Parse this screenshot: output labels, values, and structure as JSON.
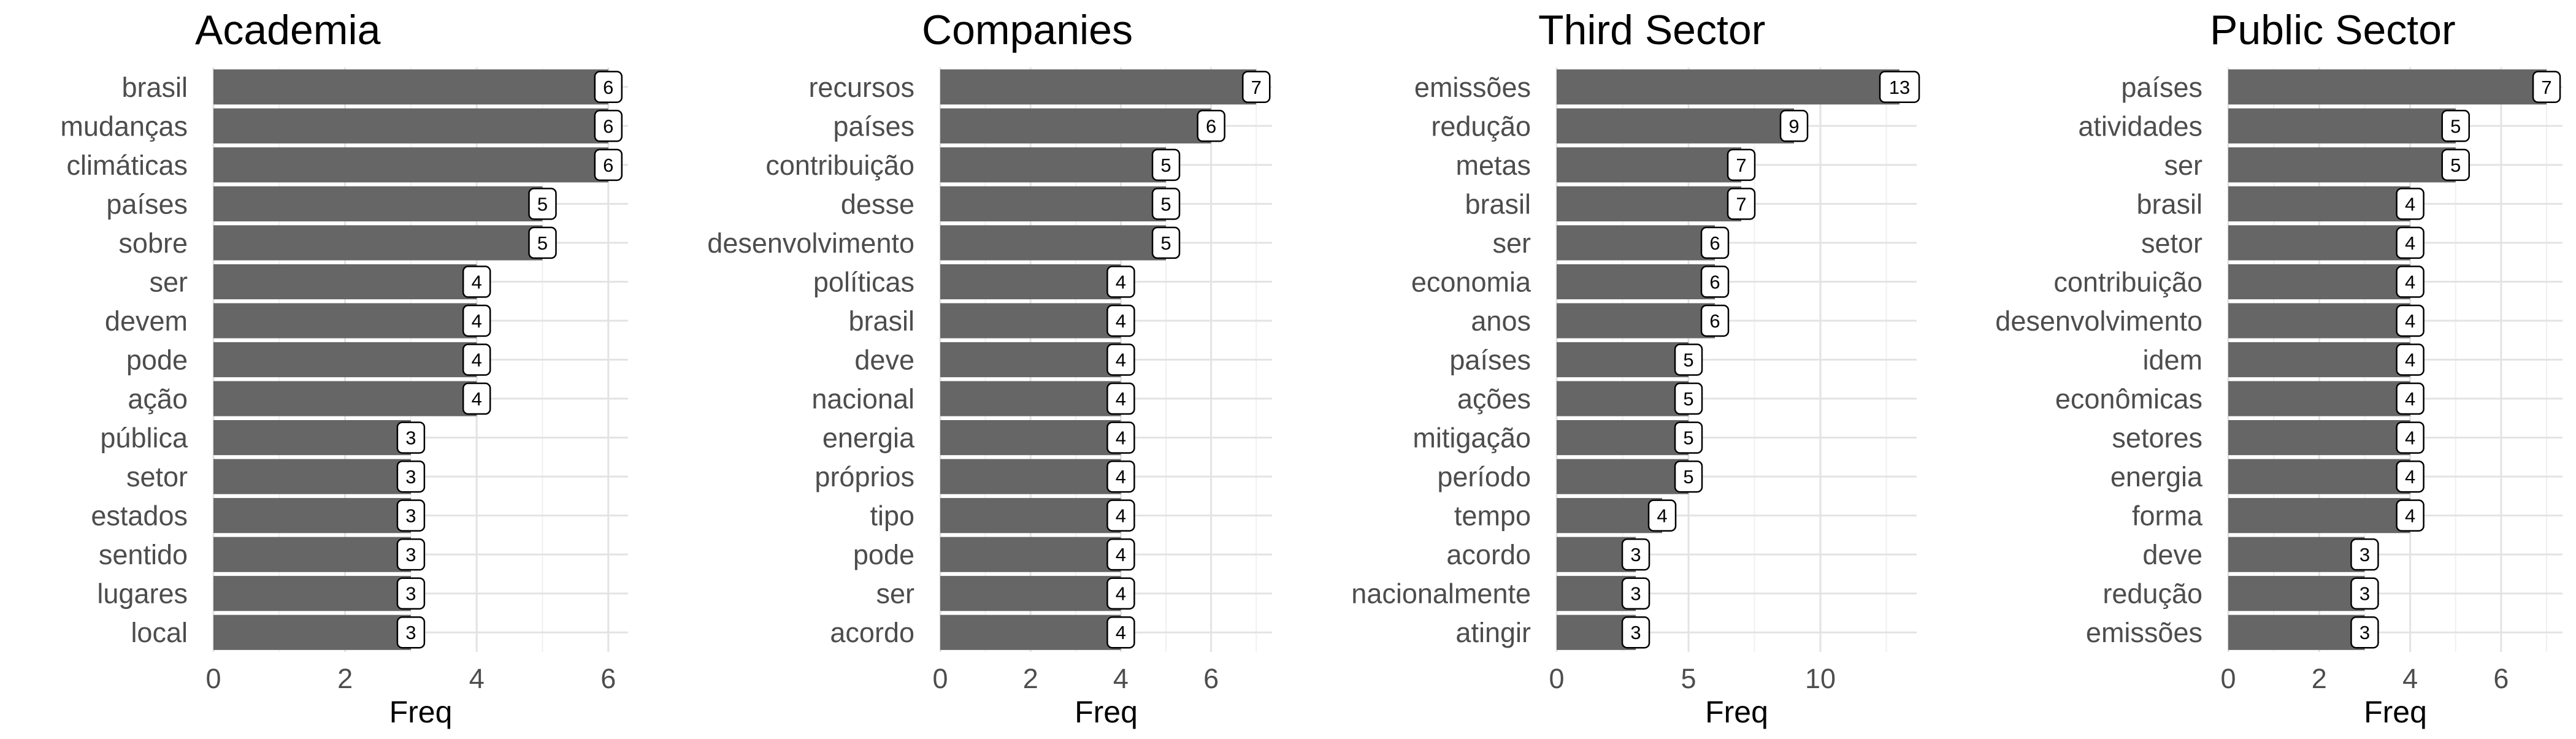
{
  "chart_data": [
    {
      "type": "bar",
      "orientation": "horizontal",
      "title": "Academia",
      "xlabel": "Freq",
      "xlim": [
        0,
        6.3
      ],
      "xticks": [
        0,
        2,
        4,
        6
      ],
      "bar_color": "#666666",
      "categories": [
        "brasil",
        "mudanças",
        "climáticas",
        "países",
        "sobre",
        "ser",
        "devem",
        "pode",
        "ação",
        "pública",
        "setor",
        "estados",
        "sentido",
        "lugares",
        "local"
      ],
      "values": [
        6,
        6,
        6,
        5,
        5,
        4,
        4,
        4,
        4,
        3,
        3,
        3,
        3,
        3,
        3
      ]
    },
    {
      "type": "bar",
      "orientation": "horizontal",
      "title": "Companies",
      "xlabel": "Freq",
      "xlim": [
        0,
        7.35
      ],
      "xticks": [
        0,
        2,
        4,
        6
      ],
      "bar_color": "#666666",
      "categories": [
        "recursos",
        "países",
        "contribuição",
        "desse",
        "desenvolvimento",
        "políticas",
        "brasil",
        "deve",
        "nacional",
        "energia",
        "próprios",
        "tipo",
        "pode",
        "ser",
        "acordo"
      ],
      "values": [
        7,
        6,
        5,
        5,
        5,
        4,
        4,
        4,
        4,
        4,
        4,
        4,
        4,
        4,
        4
      ]
    },
    {
      "type": "bar",
      "orientation": "horizontal",
      "title": "Third Sector",
      "xlabel": "Freq",
      "xlim": [
        0,
        13.65
      ],
      "xticks": [
        0,
        5,
        10
      ],
      "bar_color": "#666666",
      "categories": [
        "emissões",
        "redução",
        "metas",
        "brasil",
        "ser",
        "economia",
        "anos",
        "países",
        "ações",
        "mitigação",
        "período",
        "tempo",
        "acordo",
        "nacionalmente",
        "atingir"
      ],
      "values": [
        13,
        9,
        7,
        7,
        6,
        6,
        6,
        5,
        5,
        5,
        5,
        4,
        3,
        3,
        3
      ]
    },
    {
      "type": "bar",
      "orientation": "horizontal",
      "title": "Public Sector",
      "xlabel": "Freq",
      "xlim": [
        0,
        7.35
      ],
      "xticks": [
        0,
        2,
        4,
        6
      ],
      "bar_color": "#666666",
      "categories": [
        "países",
        "atividades",
        "ser",
        "brasil",
        "setor",
        "contribuição",
        "desenvolvimento",
        "idem",
        "econômicas",
        "setores",
        "energia",
        "forma",
        "deve",
        "redução",
        "emissões"
      ],
      "values": [
        7,
        5,
        5,
        4,
        4,
        4,
        4,
        4,
        4,
        4,
        4,
        4,
        3,
        3,
        3
      ]
    }
  ]
}
